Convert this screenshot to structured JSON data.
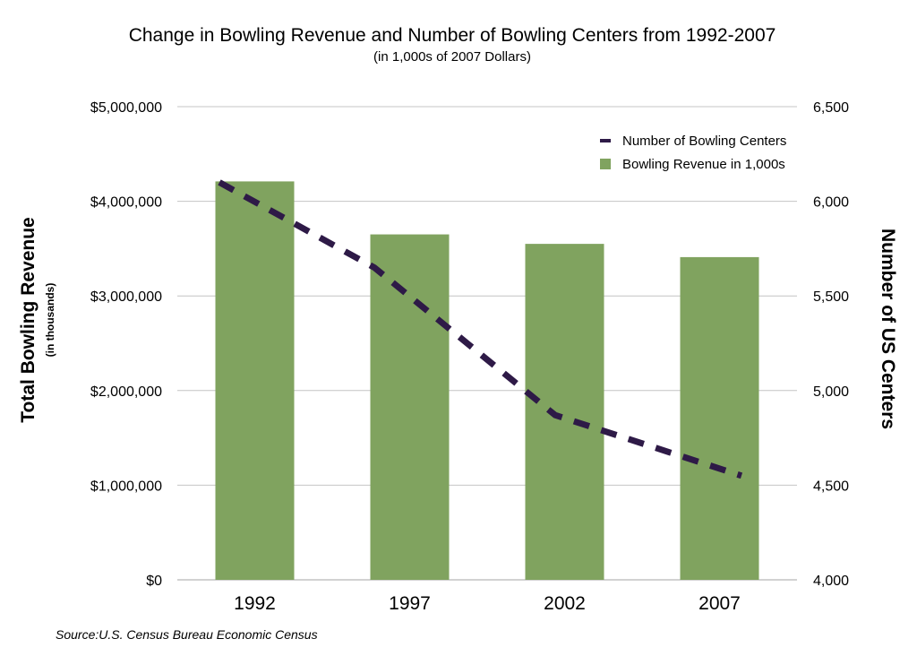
{
  "chart_data": {
    "type": "bar+line",
    "title": "Change in Bowling Revenue and Number of Bowling Centers from 1992-2007",
    "subtitle": "(in 1,000s of 2007 Dollars)",
    "ylabel": "Total Bowling Revenue",
    "ylabel_sub": "(in thousands)",
    "y2label": "Number of US Centers",
    "source": "Source:U.S. Census Bureau Economic Census",
    "categories": [
      "1992",
      "1997",
      "2002",
      "2007"
    ],
    "ylim": [
      0,
      5000000
    ],
    "y2lim": [
      4000,
      6500
    ],
    "yticks": [
      "$0",
      "$1,000,000",
      "$2,000,000",
      "$3,000,000",
      "$4,000,000",
      "$5,000,000"
    ],
    "y2ticks": [
      "4,000",
      "4,500",
      "5,000",
      "5,500",
      "6,000",
      "6,500"
    ],
    "grid": true,
    "legend_placement": "top-right",
    "series": [
      {
        "name": "Bowling Revenue in 1,000s",
        "type": "bar",
        "axis": "left",
        "color": "#80a35f",
        "values": [
          4210000,
          3650000,
          3550000,
          3410000
        ]
      },
      {
        "name": "Number of Bowling Centers",
        "type": "line",
        "style": "dashed",
        "axis": "right",
        "color": "#2e1a47",
        "values": [
          6100,
          5650,
          4870,
          4550
        ]
      }
    ]
  }
}
